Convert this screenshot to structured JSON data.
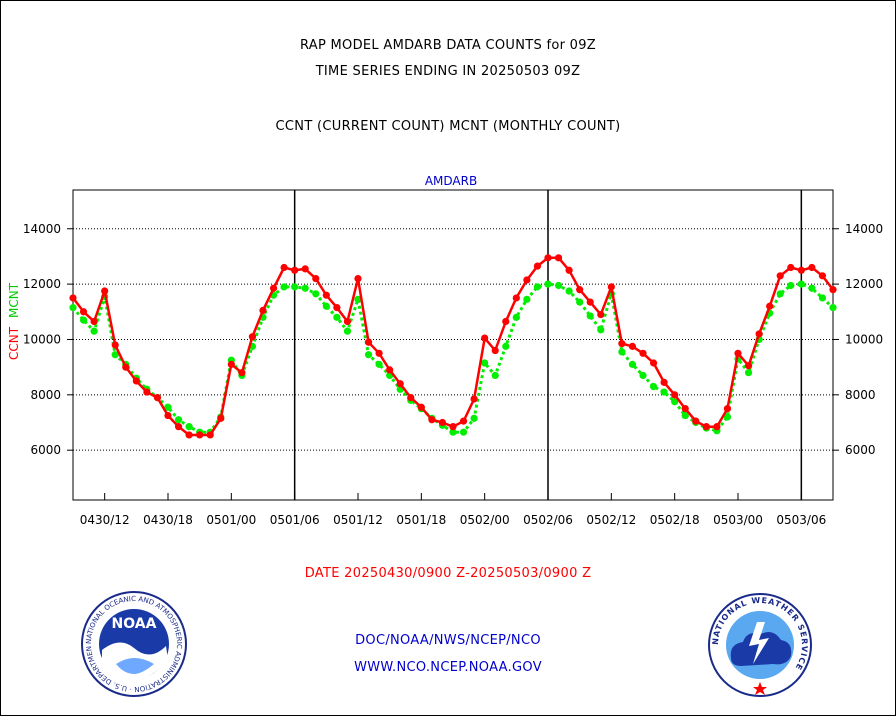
{
  "header": {
    "line1": "RAP MODEL AMDARB DATA COUNTS for 09Z",
    "line2": "TIME SERIES ENDING IN 20250503 09Z",
    "line3": "CCNT (CURRENT COUNT) MCNT (MONTHLY COUNT)"
  },
  "footer": {
    "date_range": "DATE 20250430/0900 Z-20250503/0900 Z",
    "org": "DOC/NOAA/NWS/NCEP/NCO",
    "url": "WWW.NCO.NCEP.NOAA.GOV"
  },
  "logos": {
    "noaa_text": "NOAA",
    "noaa_ring": "NATIONAL OCEANIC AND ATMOSPHERIC ADMINISTRATION · U.S. DEPARTMENT OF COMMERCE",
    "nws_ring": "NATIONAL WEATHER SERVICE"
  },
  "colors": {
    "ccnt": "#ff0000",
    "mcnt": "#00ee00",
    "blue": "#0000cc",
    "grid": "#000000"
  },
  "chart_data": {
    "type": "line",
    "title": "AMDARB",
    "ylabel_series": [
      "CCNT",
      "MCNT"
    ],
    "ylim": [
      4200,
      15400
    ],
    "yticks": [
      6000,
      8000,
      10000,
      12000,
      14000
    ],
    "xlim_hours": [
      0,
      72
    ],
    "x_tick_labels": [
      "0430/12",
      "0430/18",
      "0501/00",
      "0501/06",
      "0501/12",
      "0501/18",
      "0502/00",
      "0502/06",
      "0502/12",
      "0502/18",
      "0503/00",
      "0503/06"
    ],
    "x_tick_hours": [
      3,
      9,
      15,
      21,
      27,
      33,
      39,
      45,
      51,
      57,
      63,
      69
    ],
    "vertical_lines_hours": [
      21,
      45,
      69
    ],
    "grid": "horizontal dotted",
    "x": [
      0,
      1,
      2,
      3,
      4,
      5,
      6,
      7,
      8,
      9,
      10,
      11,
      12,
      13,
      14,
      15,
      16,
      17,
      18,
      19,
      20,
      21,
      22,
      23,
      24,
      25,
      26,
      27,
      28,
      29,
      30,
      31,
      32,
      33,
      34,
      35,
      36,
      37,
      38,
      39,
      40,
      41,
      42,
      43,
      44,
      45,
      46,
      47,
      48,
      49,
      50,
      51,
      52,
      53,
      54,
      55,
      56,
      57,
      58,
      59,
      60,
      61,
      62,
      63,
      64,
      65,
      66,
      67,
      68,
      69,
      70,
      71,
      72
    ],
    "series": [
      {
        "name": "CCNT",
        "values": [
          11500,
          11000,
          10650,
          11750,
          9800,
          9000,
          8500,
          8100,
          7900,
          7250,
          6850,
          6550,
          6550,
          6550,
          7150,
          9100,
          8800,
          10100,
          11050,
          11850,
          12600,
          12500,
          12550,
          12200,
          11600,
          11150,
          10650,
          12200,
          9900,
          9500,
          8900,
          8400,
          7900,
          7550,
          7100,
          7000,
          6850,
          7050,
          7850,
          10050,
          9600,
          10650,
          11500,
          12150,
          12650,
          12950,
          12950,
          12500,
          11800,
          11350,
          10900,
          11900,
          9850,
          9750,
          9500,
          9150,
          8450,
          8000,
          7500,
          7050,
          6850,
          6850,
          7500,
          9500,
          9050,
          10200,
          11200,
          12300,
          12600,
          12500,
          12600,
          12300,
          11800
        ]
      },
      {
        "name": "MCNT",
        "values": [
          11150,
          10700,
          10300,
          11550,
          9450,
          9100,
          8600,
          8200,
          7900,
          7550,
          7100,
          6850,
          6650,
          6650,
          7200,
          9250,
          8700,
          9750,
          10800,
          11600,
          11900,
          11900,
          11850,
          11650,
          11200,
          10800,
          10300,
          11450,
          9450,
          9100,
          8700,
          8200,
          7800,
          7500,
          7150,
          6900,
          6650,
          6650,
          7150,
          9150,
          8700,
          9750,
          10800,
          11450,
          11900,
          12000,
          11950,
          11750,
          11350,
          10850,
          10350,
          11650,
          9550,
          9100,
          8700,
          8300,
          8100,
          7750,
          7250,
          7000,
          6800,
          6700,
          7200,
          9300,
          8800,
          10000,
          10950,
          11650,
          11950,
          12000,
          11850,
          11500,
          11150
        ]
      }
    ]
  }
}
